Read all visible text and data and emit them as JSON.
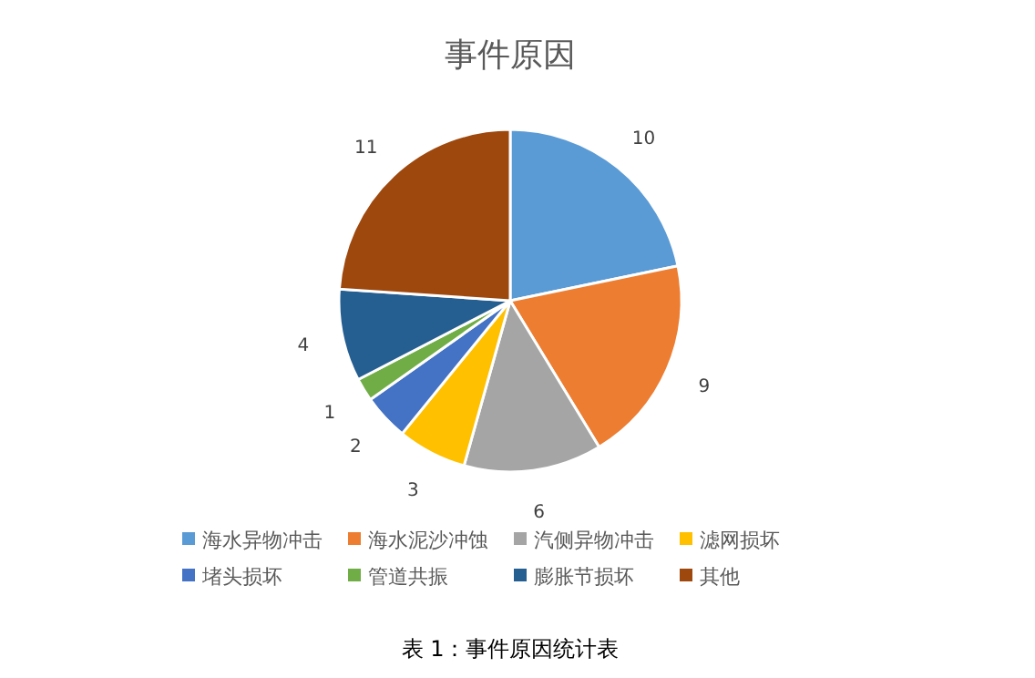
{
  "chart_data": {
    "type": "pie",
    "title": "事件原因",
    "categories": [
      "海水异物冲击",
      "海水泥沙冲蚀",
      "汽侧异物冲击",
      "滤网损坏",
      "堵头损坏",
      "管道共振",
      "膨胀节损坏",
      "其他"
    ],
    "values": [
      10,
      9,
      6,
      3,
      2,
      1,
      4,
      11
    ],
    "colors": [
      "#5b9bd5",
      "#ed7d31",
      "#a5a5a5",
      "#ffc000",
      "#4472c4",
      "#70ad47",
      "#255e91",
      "#9e480e"
    ],
    "data_labels": true,
    "legend": "bottom",
    "annotations": [
      "表 1：事件原因统计表"
    ]
  }
}
